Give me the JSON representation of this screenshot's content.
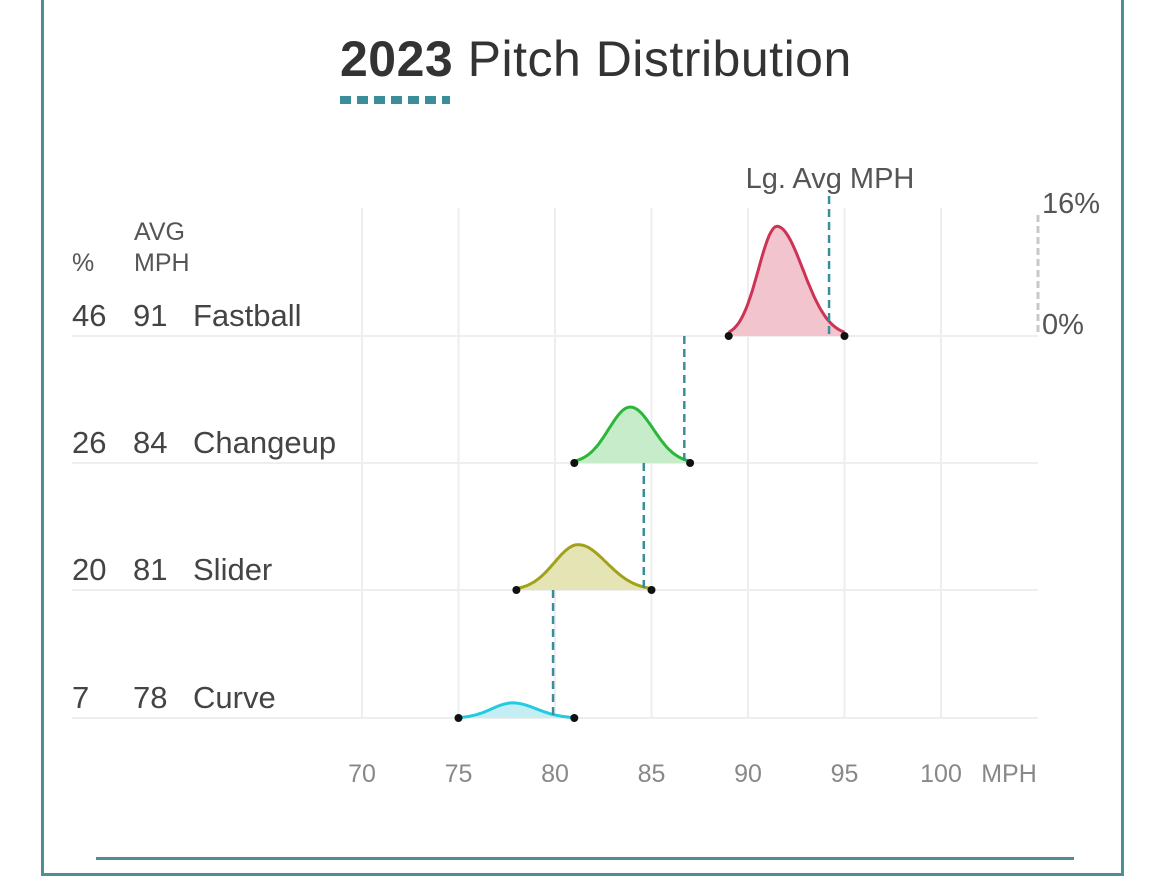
{
  "title": {
    "year": "2023",
    "rest": "Pitch Distribution"
  },
  "chart_data": {
    "type": "ridgeline",
    "title": "2023 Pitch Distribution",
    "xlabel": "MPH",
    "xlim": [
      70,
      104
    ],
    "x_ticks": [
      70,
      75,
      80,
      85,
      90,
      95,
      100
    ],
    "x_tick_labels": [
      "70",
      "75",
      "80",
      "85",
      "90",
      "95",
      "100"
    ],
    "x_unit_label": "MPH",
    "column_headers": {
      "pct": "%",
      "avg_line1": "AVG",
      "avg_line2": "MPH"
    },
    "density_scale": {
      "min_label": "0%",
      "max_label": "16%",
      "min": 0,
      "max": 16
    },
    "league_avg_label": "Lg. Avg MPH",
    "colors": {
      "border": "#4d8f93",
      "league_avg_line": "#3a8e99",
      "grid": "#eeeeee",
      "text": "#444444",
      "tick_text": "#888888"
    },
    "pitches": [
      {
        "name": "Fastball",
        "pct": "46",
        "avg_mph": "91",
        "min": 89,
        "max": 95,
        "peak_mph": 91.5,
        "peak_density": 14.5,
        "league_avg": 94.2,
        "stroke": "#cc3355",
        "fill": "#f2c4cd"
      },
      {
        "name": "Changeup",
        "pct": "26",
        "avg_mph": "84",
        "min": 81,
        "max": 87,
        "peak_mph": 83.9,
        "peak_density": 7.4,
        "league_avg": 86.7,
        "stroke": "#2ab83a",
        "fill": "#c7ecc9"
      },
      {
        "name": "Slider",
        "pct": "20",
        "avg_mph": "81",
        "min": 78,
        "max": 85,
        "peak_mph": 81.2,
        "peak_density": 6.0,
        "league_avg": 84.6,
        "stroke": "#a2a21a",
        "fill": "#e4e4b4"
      },
      {
        "name": "Curve",
        "pct": "7",
        "avg_mph": "78",
        "min": 75,
        "max": 81,
        "peak_mph": 77.8,
        "peak_density": 2.0,
        "league_avg": 79.9,
        "stroke": "#22cce0",
        "fill": "#c4eef4"
      }
    ]
  }
}
